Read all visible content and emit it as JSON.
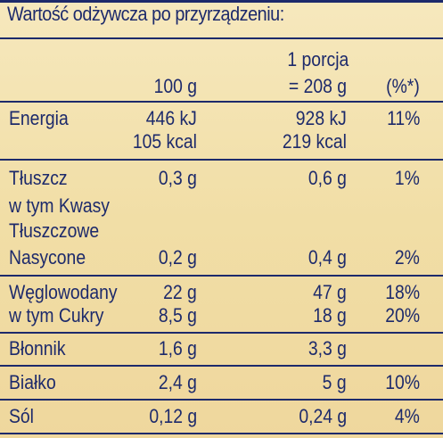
{
  "title": "Wartość odżywcza po przyrządzeniu:",
  "header": {
    "col_100g": "100 g",
    "col_portion_line1": "1 porcja",
    "col_portion_line2": "= 208 g",
    "col_percent": "(%*)"
  },
  "rows": [
    {
      "label_lines": [
        "Energia"
      ],
      "val100_lines": [
        "446 kJ",
        "105 kcal"
      ],
      "portion_lines": [
        "928 kJ",
        "219 kcal"
      ],
      "pct": "11%"
    },
    {
      "label_lines": [
        "Tłuszcz"
      ],
      "val100": "0,3 g",
      "portion": "0,6 g",
      "pct": "1%"
    },
    {
      "label_lines": [
        "w tym Kwasy",
        "Tłuszczowe",
        "Nasycone"
      ],
      "val100": "0,2 g",
      "portion": "0,4 g",
      "pct": "2%"
    },
    {
      "label_lines": [
        "Węglowodany"
      ],
      "val100": "22 g",
      "portion": "47 g",
      "pct": "18%"
    },
    {
      "label_lines": [
        "w tym Cukry"
      ],
      "val100": "8,5 g",
      "portion": "18 g",
      "pct": "20%"
    },
    {
      "label_lines": [
        "Błonnik"
      ],
      "val100": "1,6 g",
      "portion": "3,3 g",
      "pct": ""
    },
    {
      "label_lines": [
        "Białko"
      ],
      "val100": "2,4 g",
      "portion": "5 g",
      "pct": "10%"
    },
    {
      "label_lines": [
        "Sól"
      ],
      "val100": "0,12 g",
      "portion": "0,24 g",
      "pct": "4%"
    }
  ]
}
